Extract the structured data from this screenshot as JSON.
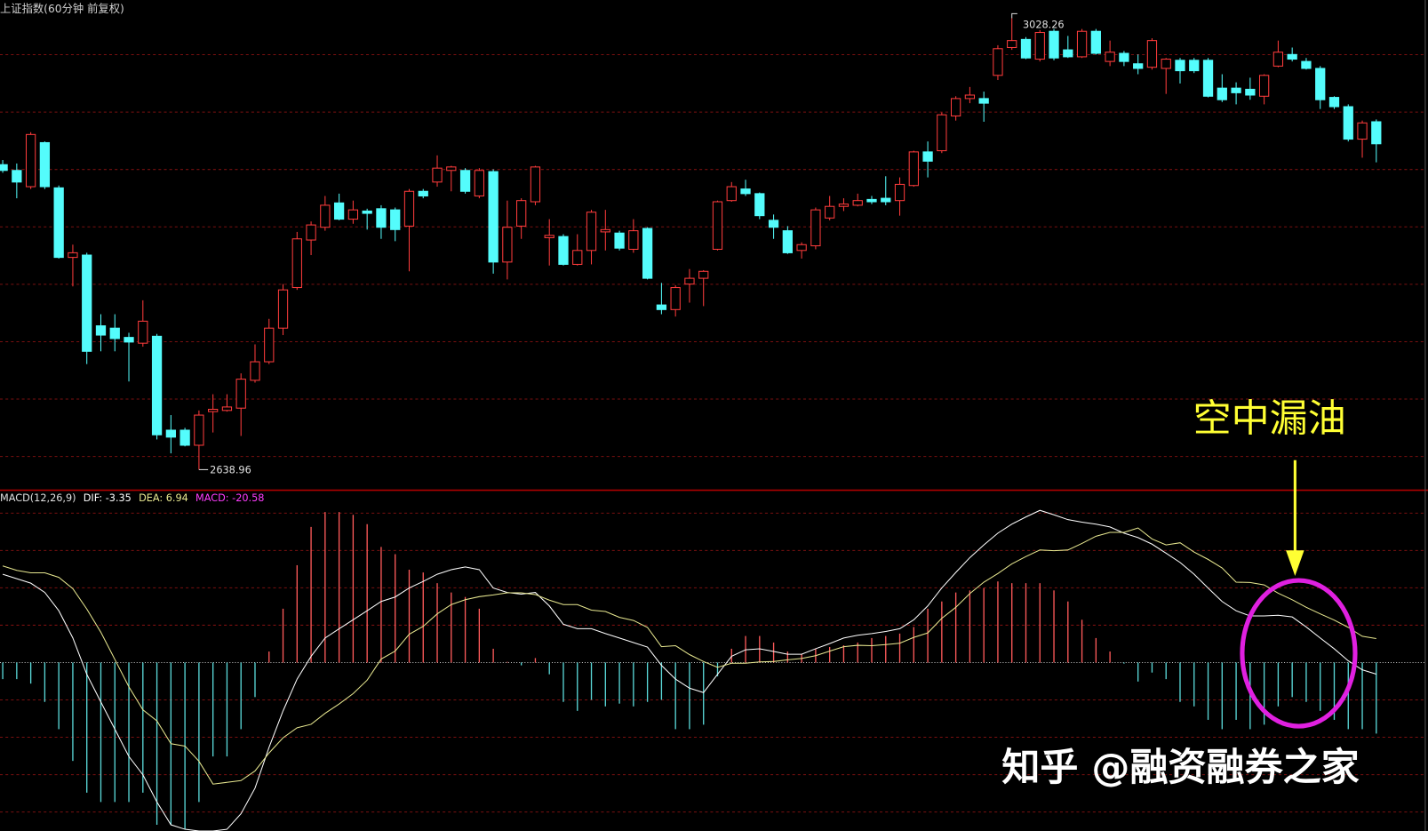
{
  "title": "上证指数(60分钟 前复权)",
  "chart_data": [
    {
      "type": "candlestick",
      "up_color": "#ff3c3c",
      "down_color": "#54fcfc",
      "ylim": [
        2622,
        3044
      ],
      "grid": true,
      "ohlc": [
        [
          2902,
          2906,
          2895,
          2897
        ],
        [
          2897,
          2903,
          2873,
          2887
        ],
        [
          2883,
          2930,
          2881,
          2928
        ],
        [
          2921,
          2922,
          2881,
          2883
        ],
        [
          2882,
          2884,
          2821,
          2822
        ],
        [
          2822,
          2833,
          2797,
          2826
        ],
        [
          2824,
          2826,
          2730,
          2741
        ],
        [
          2763,
          2773,
          2741,
          2755
        ],
        [
          2761,
          2773,
          2741,
          2752
        ],
        [
          2753,
          2757,
          2715,
          2749
        ],
        [
          2748,
          2785,
          2745,
          2767
        ],
        [
          2754,
          2756,
          2665,
          2669
        ],
        [
          2673,
          2686,
          2653,
          2667
        ],
        [
          2673,
          2675,
          2659,
          2660
        ],
        [
          2660,
          2690,
          2638.96,
          2686
        ],
        [
          2689,
          2704,
          2671,
          2691
        ],
        [
          2690,
          2704,
          2689,
          2693
        ],
        [
          2692,
          2722,
          2668,
          2717
        ],
        [
          2716,
          2747,
          2714,
          2732
        ],
        [
          2732,
          2769,
          2730,
          2761
        ],
        [
          2761,
          2799,
          2755,
          2794
        ],
        [
          2796,
          2844,
          2794,
          2838
        ],
        [
          2837,
          2853,
          2824,
          2850
        ],
        [
          2848,
          2875,
          2845,
          2867
        ],
        [
          2869,
          2877,
          2854,
          2855
        ],
        [
          2855,
          2871,
          2851,
          2863
        ],
        [
          2862,
          2864,
          2846,
          2860
        ],
        [
          2864,
          2867,
          2838,
          2848
        ],
        [
          2863,
          2865,
          2836,
          2846
        ],
        [
          2849,
          2881,
          2810,
          2879
        ],
        [
          2879,
          2881,
          2873,
          2875
        ],
        [
          2887,
          2910,
          2883,
          2899
        ],
        [
          2897,
          2901,
          2879,
          2900
        ],
        [
          2897,
          2899,
          2877,
          2879
        ],
        [
          2875,
          2899,
          2873,
          2897
        ],
        [
          2896,
          2898,
          2808,
          2818
        ],
        [
          2818,
          2871,
          2803,
          2848
        ],
        [
          2849,
          2873,
          2838,
          2871
        ],
        [
          2870,
          2901,
          2867,
          2900
        ],
        [
          2839,
          2855,
          2815,
          2841
        ],
        [
          2840,
          2842,
          2815,
          2816
        ],
        [
          2816,
          2842,
          2815,
          2828
        ],
        [
          2828,
          2863,
          2816,
          2861
        ],
        [
          2844,
          2863,
          2828,
          2846
        ],
        [
          2843,
          2845,
          2828,
          2830
        ],
        [
          2829,
          2855,
          2826,
          2845
        ],
        [
          2847,
          2848,
          2803,
          2804
        ],
        [
          2781,
          2800,
          2773,
          2777
        ],
        [
          2777,
          2798,
          2771,
          2796
        ],
        [
          2799,
          2812,
          2783,
          2804
        ],
        [
          2804,
          2811,
          2780,
          2810
        ],
        [
          2829,
          2871,
          2828,
          2870
        ],
        [
          2871,
          2887,
          2870,
          2883
        ],
        [
          2881,
          2889,
          2875,
          2877
        ],
        [
          2877,
          2878,
          2855,
          2858
        ],
        [
          2854,
          2859,
          2838,
          2848
        ],
        [
          2845,
          2849,
          2825,
          2826
        ],
        [
          2828,
          2835,
          2821,
          2833
        ],
        [
          2832,
          2865,
          2829,
          2863
        ],
        [
          2856,
          2875,
          2854,
          2866
        ],
        [
          2866,
          2873,
          2862,
          2868
        ],
        [
          2867,
          2877,
          2866,
          2871
        ],
        [
          2872,
          2875,
          2868,
          2870
        ],
        [
          2873,
          2892,
          2867,
          2870
        ],
        [
          2871,
          2891,
          2858,
          2885
        ],
        [
          2884,
          2914,
          2883,
          2913
        ],
        [
          2913,
          2922,
          2891,
          2905
        ],
        [
          2914,
          2947,
          2912,
          2945
        ],
        [
          2944,
          2961,
          2940,
          2959
        ],
        [
          2959,
          2969,
          2955,
          2962
        ],
        [
          2959,
          2965,
          2939,
          2955
        ],
        [
          2979,
          3005,
          2975,
          3002
        ],
        [
          3003,
          3028.26,
          3001,
          3009
        ],
        [
          3010,
          3012,
          2993,
          2994
        ],
        [
          2993,
          3018,
          2991,
          3016
        ],
        [
          3017,
          3019,
          2992,
          2994
        ],
        [
          3001,
          3013,
          2994,
          2995
        ],
        [
          2995,
          3019,
          2994,
          3017
        ],
        [
          3017,
          3019,
          2997,
          2998
        ],
        [
          2991,
          3009,
          2987,
          2999
        ],
        [
          2998,
          3000,
          2987,
          2991
        ],
        [
          2989,
          2997,
          2980,
          2985
        ],
        [
          2986,
          3011,
          2984,
          3009
        ],
        [
          2985,
          2994,
          2963,
          2993
        ],
        [
          2992,
          2994,
          2972,
          2983
        ],
        [
          2992,
          2994,
          2981,
          2983
        ],
        [
          2992,
          2994,
          2960,
          2961
        ],
        [
          2968,
          2980,
          2956,
          2958
        ],
        [
          2968,
          2973,
          2954,
          2964
        ],
        [
          2967,
          2977,
          2958,
          2962
        ],
        [
          2961,
          2980,
          2954,
          2979
        ],
        [
          2987,
          3009,
          2986,
          2999
        ],
        [
          2997,
          3003,
          2991,
          2993
        ],
        [
          2991,
          2994,
          2984,
          2985
        ],
        [
          2985,
          2987,
          2950,
          2958
        ],
        [
          2960,
          2961,
          2950,
          2952
        ],
        [
          2952,
          2954,
          2922,
          2924
        ],
        [
          2924,
          2940,
          2908,
          2938
        ],
        [
          2939,
          2941,
          2904,
          2920
        ]
      ]
    },
    {
      "type": "macd",
      "title": "MACD(12,26,9)",
      "ylim": [
        -48.8,
        49.4
      ],
      "grid": true,
      "series": [
        {
          "name": "DIF: -3.35",
          "color": "#ffffff",
          "kind": "line",
          "values": [
            25.6,
            24.3,
            23.0,
            20.3,
            15.0,
            7.1,
            -3.4,
            -11.4,
            -19.3,
            -27.2,
            -32.5,
            -40.4,
            -47.0,
            -48.3,
            -48.8,
            -48.8,
            -48.3,
            -43.8,
            -36.4,
            -24.6,
            -14.0,
            -4.8,
            1.8,
            7.1,
            9.8,
            12.4,
            15.0,
            17.7,
            19.0,
            21.6,
            23.5,
            25.6,
            26.9,
            27.7,
            26.9,
            21.6,
            20.3,
            19.8,
            20.3,
            16.4,
            11.1,
            9.8,
            9.8,
            8.4,
            7.1,
            5.8,
            4.5,
            -0.8,
            -4.8,
            -7.4,
            -8.7,
            -3.4,
            1.8,
            3.7,
            4.0,
            3.2,
            2.4,
            2.4,
            4.0,
            5.5,
            7.1,
            7.9,
            8.4,
            9.0,
            9.8,
            12.4,
            16.4,
            21.6,
            26.1,
            30.4,
            34.1,
            37.5,
            40.1,
            42.2,
            44.1,
            42.8,
            41.4,
            40.7,
            40.1,
            39.3,
            37.5,
            36.2,
            34.3,
            31.7,
            29.0,
            25.6,
            21.6,
            17.7,
            15.0,
            13.5,
            13.5,
            13.7,
            13.2,
            10.3,
            7.1,
            4.0,
            0.5,
            -2.1,
            -3.35
          ]
        },
        {
          "name": "DEA: 6.94",
          "color": "#e8e890",
          "kind": "line",
          "values": [
            28.0,
            26.7,
            26.0,
            26.0,
            24.7,
            21.4,
            15.5,
            8.8,
            0.9,
            -7.0,
            -13.7,
            -16.9,
            -23.5,
            -24.2,
            -28.6,
            -35.2,
            -34.7,
            -34.2,
            -31.4,
            -26.2,
            -21.8,
            -18.9,
            -17.9,
            -14.7,
            -12.0,
            -9.0,
            -5.1,
            1.0,
            3.3,
            8.2,
            10.5,
            14.1,
            16.8,
            18.2,
            19.1,
            19.6,
            20.2,
            20.2,
            19.7,
            18.1,
            16.8,
            16.8,
            15.2,
            14.8,
            13.1,
            12.2,
            10.2,
            4.6,
            4.9,
            2.3,
            0.3,
            -1.4,
            -0.2,
            -0.2,
            0.2,
            0.3,
            0.8,
            1.2,
            2.0,
            3.3,
            4.6,
            5.0,
            4.9,
            5.2,
            5.6,
            7.3,
            8.6,
            12.8,
            16.0,
            20.0,
            23.3,
            25.8,
            28.6,
            30.7,
            32.6,
            32.4,
            32.6,
            34.5,
            36.6,
            37.7,
            37.7,
            39.0,
            35.8,
            34.1,
            34.7,
            32.0,
            29.9,
            27.4,
            23.3,
            23.2,
            22.5,
            20.1,
            18.2,
            16.0,
            14.1,
            12.3,
            10.2,
            7.6,
            6.94
          ]
        },
        {
          "name": "MACD: -20.58",
          "color": "#ff3cff",
          "kind": "bar",
          "up_color": "#ff5a5a",
          "down_color": "#5ad8d8",
          "values": [
            -4.8,
            -4.8,
            -6.1,
            -11.4,
            -19.3,
            -28.5,
            -37.7,
            -40.4,
            -40.4,
            -40.4,
            -37.7,
            -47.0,
            -47.0,
            -48.3,
            -40.4,
            -27.2,
            -27.2,
            -19.3,
            -10.0,
            3.2,
            15.6,
            28.2,
            39.3,
            43.6,
            43.6,
            42.8,
            40.1,
            33.5,
            31.4,
            26.9,
            26.1,
            23.0,
            20.3,
            19.0,
            15.6,
            4.0,
            0.2,
            -0.8,
            1.3,
            -3.4,
            -11.4,
            -14.0,
            -10.8,
            -12.7,
            -11.9,
            -12.7,
            -11.4,
            -10.8,
            -19.3,
            -19.3,
            -18.0,
            -4.0,
            4.0,
            7.7,
            7.7,
            5.8,
            3.2,
            2.4,
            4.0,
            4.5,
            5.0,
            5.8,
            7.1,
            7.7,
            8.4,
            10.3,
            15.6,
            17.7,
            20.3,
            20.9,
            21.6,
            23.5,
            23.0,
            23.0,
            23.0,
            20.9,
            17.7,
            12.4,
            7.1,
            3.2,
            -0.3,
            -5.5,
            -2.9,
            -4.8,
            -11.4,
            -12.7,
            -16.6,
            -19.3,
            -16.6,
            -19.3,
            -18.0,
            -12.7,
            -10.0,
            -11.4,
            -14.0,
            -16.6,
            -19.3,
            -19.3,
            -20.58
          ]
        }
      ]
    }
  ],
  "annotation": {
    "text": "空中漏油",
    "color": "#ffff33"
  },
  "watermark": "知乎 @融资融券之家"
}
